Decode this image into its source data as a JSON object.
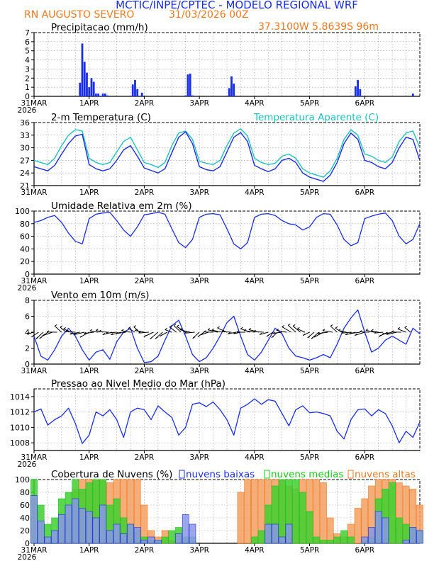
{
  "header": {
    "title": "MCTIC/INPE/CPTEC - MODELO REGIONAL WRF",
    "location": "RN AUGUSTO SEVERO",
    "run": "31/03/2026 00Z",
    "coords": "37.3100W 5.8639S 96m"
  },
  "colors": {
    "blue": "#1a2ee6",
    "cyan": "#20c0c0",
    "orange": "#f07820",
    "green": "#18c818",
    "orange_fill": "#f5a060",
    "green_fill": "#40d030",
    "blue_fill": "#8a96e8",
    "title_blue": "#1a2ee6",
    "black": "#000000"
  },
  "x_ticks": [
    "31MAR",
    "1APR",
    "2APR",
    "3APR",
    "4APR",
    "5APR",
    "6APR"
  ],
  "x_year": "2026",
  "chart_data": [
    {
      "id": "precip",
      "type": "bar",
      "title": "Precipitacao (mm/h)",
      "ylim": [
        0,
        7
      ],
      "yticks": [
        "0",
        "1",
        "2",
        "3",
        "4",
        "5",
        "6",
        "7"
      ],
      "hours_from_start": [
        20,
        21,
        22,
        23,
        24,
        25,
        26,
        27,
        28,
        30,
        31,
        32,
        43,
        44,
        45,
        47,
        66,
        67,
        68,
        69,
        85,
        86,
        87,
        140,
        141,
        142,
        165
      ],
      "values": [
        1.5,
        5.8,
        3.8,
        2.6,
        1.0,
        2.0,
        1.6,
        0.3,
        0.3,
        0.3,
        0.3,
        0.1,
        1.3,
        1.8,
        0.8,
        0.4,
        0.1,
        2.4,
        2.5,
        0.1,
        0.9,
        2.2,
        1.4,
        1.1,
        1.8,
        0.8,
        0.3
      ]
    },
    {
      "id": "temp",
      "type": "line",
      "title": "2-m Temperatura (C)",
      "title2": "Temperatura Aparente (C)",
      "ylim": [
        21,
        36
      ],
      "yticks": [
        "21",
        "24",
        "27",
        "30",
        "33",
        "36"
      ],
      "series": [
        {
          "name": "2-m Temperatura (C)",
          "hours": [
            0,
            3,
            6,
            9,
            12,
            15,
            18,
            21,
            24,
            27,
            30,
            33,
            36,
            39,
            42,
            45,
            48,
            51,
            54,
            57,
            60,
            63,
            66,
            69,
            72,
            75,
            78,
            81,
            84,
            87,
            90,
            93,
            96,
            99,
            102,
            105,
            108,
            111,
            114,
            117,
            120,
            123,
            126,
            129,
            132,
            135,
            138,
            141,
            144,
            147,
            150,
            153,
            156,
            159,
            162,
            165,
            168
          ],
          "values": [
            25.5,
            25.0,
            24.5,
            25.8,
            28.5,
            31.0,
            32.8,
            33.2,
            26.0,
            25.0,
            24.5,
            25.0,
            27.0,
            29.5,
            30.5,
            28.0,
            25.2,
            24.6,
            24.0,
            25.0,
            28.8,
            32.5,
            33.8,
            31.0,
            25.5,
            24.8,
            24.5,
            25.5,
            29.0,
            32.5,
            33.6,
            31.5,
            25.8,
            25.0,
            24.3,
            25.0,
            27.0,
            27.5,
            26.5,
            24.0,
            23.0,
            22.5,
            22.0,
            23.5,
            26.5,
            31.0,
            33.5,
            32.0,
            27.0,
            26.5,
            25.5,
            25.0,
            26.5,
            30.0,
            32.5,
            32.0,
            27.0
          ]
        },
        {
          "name": "Temperatura Aparente (C)",
          "hours": [
            0,
            3,
            6,
            9,
            12,
            15,
            18,
            21,
            24,
            27,
            30,
            33,
            36,
            39,
            42,
            45,
            48,
            51,
            54,
            57,
            60,
            63,
            66,
            69,
            72,
            75,
            78,
            81,
            84,
            87,
            90,
            93,
            96,
            99,
            102,
            105,
            108,
            111,
            114,
            117,
            120,
            123,
            126,
            129,
            132,
            135,
            138,
            141,
            144,
            147,
            150,
            153,
            156,
            159,
            162,
            165,
            168
          ],
          "values": [
            27.0,
            26.5,
            26.0,
            27.5,
            30.5,
            33.0,
            34.3,
            34.0,
            27.5,
            26.5,
            26.0,
            26.5,
            29.0,
            31.5,
            32.5,
            29.5,
            26.5,
            26.0,
            25.3,
            26.5,
            30.5,
            33.5,
            34.0,
            32.0,
            26.8,
            26.3,
            26.0,
            27.0,
            30.5,
            33.5,
            34.5,
            32.8,
            27.5,
            26.5,
            26.0,
            26.3,
            28.0,
            28.5,
            27.5,
            25.0,
            24.0,
            23.5,
            23.0,
            24.5,
            27.5,
            32.0,
            34.3,
            33.0,
            28.5,
            28.0,
            27.0,
            26.5,
            27.8,
            31.5,
            33.5,
            34.0,
            30.0
          ]
        }
      ]
    },
    {
      "id": "rh",
      "type": "line",
      "title": "Umidade Relativa em 2m (%)",
      "ylim": [
        0,
        100
      ],
      "yticks": [
        "0",
        "20",
        "40",
        "60",
        "80",
        "100"
      ],
      "series": [
        {
          "name": "Umidade Relativa em 2m (%)",
          "hours": [
            0,
            3,
            6,
            9,
            12,
            15,
            18,
            21,
            24,
            27,
            30,
            33,
            36,
            39,
            42,
            45,
            48,
            51,
            54,
            57,
            60,
            63,
            66,
            69,
            72,
            75,
            78,
            81,
            84,
            87,
            90,
            93,
            96,
            99,
            102,
            105,
            108,
            111,
            114,
            117,
            120,
            123,
            126,
            129,
            132,
            135,
            138,
            141,
            144,
            147,
            150,
            153,
            156,
            159,
            162,
            165,
            168
          ],
          "values": [
            82,
            85,
            90,
            93,
            82,
            65,
            52,
            48,
            88,
            95,
            97,
            98,
            85,
            70,
            60,
            75,
            94,
            96,
            98,
            95,
            72,
            50,
            42,
            55,
            90,
            95,
            96,
            94,
            72,
            48,
            40,
            50,
            90,
            95,
            96,
            93,
            85,
            80,
            78,
            70,
            75,
            90,
            96,
            95,
            78,
            55,
            45,
            50,
            88,
            92,
            95,
            97,
            85,
            60,
            48,
            55,
            80
          ]
        }
      ]
    },
    {
      "id": "wind",
      "type": "line",
      "title": "Vento em 10m (m/s)",
      "ylim": [
        0,
        8
      ],
      "yticks": [
        "0",
        "2",
        "4",
        "6",
        "8"
      ],
      "barbs": "wind direction arrows along 4 m/s line",
      "series": [
        {
          "name": "Vento em 10m (m/s)",
          "hours": [
            0,
            3,
            6,
            9,
            12,
            15,
            18,
            21,
            24,
            27,
            30,
            33,
            36,
            39,
            42,
            45,
            48,
            51,
            54,
            57,
            60,
            63,
            66,
            69,
            72,
            75,
            78,
            81,
            84,
            87,
            90,
            93,
            96,
            99,
            102,
            105,
            108,
            111,
            114,
            117,
            120,
            123,
            126,
            129,
            132,
            135,
            138,
            141,
            144,
            147,
            150,
            153,
            156,
            159,
            162,
            165,
            168
          ],
          "values": [
            3.5,
            1.0,
            0.5,
            1.8,
            3.5,
            4.5,
            3.5,
            1.8,
            0.5,
            1.5,
            1.8,
            0.6,
            2.8,
            4.0,
            4.5,
            2.0,
            0.2,
            0.3,
            1.0,
            3.0,
            4.8,
            5.5,
            3.5,
            1.2,
            0.3,
            0.8,
            2.0,
            3.5,
            5.2,
            6.0,
            3.5,
            1.2,
            0.5,
            1.5,
            3.0,
            4.5,
            3.8,
            2.0,
            1.0,
            0.8,
            0.5,
            0.8,
            1.2,
            0.8,
            2.5,
            4.5,
            5.8,
            6.8,
            4.0,
            1.5,
            2.0,
            3.0,
            3.5,
            3.0,
            2.5,
            4.5,
            3.8
          ]
        }
      ]
    },
    {
      "id": "pressure",
      "type": "line",
      "title": "Pressao ao Nivel Medio do Mar (hPa)",
      "ylim": [
        1007,
        1015
      ],
      "yticks": [
        "1008",
        "1010",
        "1012",
        "1014"
      ],
      "series": [
        {
          "name": "Pressao ao Nivel Medio do Mar (hPa)",
          "hours": [
            0,
            3,
            6,
            9,
            12,
            15,
            18,
            21,
            24,
            27,
            30,
            33,
            36,
            39,
            42,
            45,
            48,
            51,
            54,
            57,
            60,
            63,
            66,
            69,
            72,
            75,
            78,
            81,
            84,
            87,
            90,
            93,
            96,
            99,
            102,
            105,
            108,
            111,
            114,
            117,
            120,
            123,
            126,
            129,
            132,
            135,
            138,
            141,
            144,
            147,
            150,
            153,
            156,
            159,
            162,
            165,
            168
          ],
          "values": [
            1012.0,
            1012.4,
            1010.3,
            1011.0,
            1011.5,
            1012.5,
            1010.5,
            1007.9,
            1009.0,
            1012.0,
            1011.5,
            1012.3,
            1011.0,
            1008.7,
            1012.0,
            1012.5,
            1012.3,
            1011.0,
            1012.8,
            1012.0,
            1011.3,
            1009.0,
            1010.0,
            1013.0,
            1013.2,
            1012.7,
            1013.3,
            1012.3,
            1011.0,
            1009.0,
            1012.5,
            1013.0,
            1013.7,
            1013.0,
            1013.6,
            1013.4,
            1011.8,
            1010.2,
            1012.3,
            1012.8,
            1011.9,
            1012.0,
            1011.8,
            1011.5,
            1009.5,
            1008.5,
            1011.0,
            1012.3,
            1012.4,
            1011.5,
            1012.3,
            1011.8,
            1010.2,
            1008.0,
            1009.5,
            1008.7,
            1010.7
          ]
        }
      ]
    },
    {
      "id": "clouds",
      "type": "bar",
      "title": "Cobertura de Nuvens (%)",
      "legend": [
        "nuvens baixas",
        "nuvens medias",
        "nuvens altas"
      ],
      "ylim": [
        0,
        100
      ],
      "yticks": [
        "0",
        "20",
        "40",
        "60",
        "80",
        "100"
      ],
      "series": [
        {
          "name": "nuvens altas",
          "hours": [
            0,
            3,
            6,
            9,
            12,
            15,
            18,
            21,
            24,
            27,
            30,
            33,
            36,
            39,
            42,
            45,
            48,
            51,
            54,
            57,
            60,
            63,
            66,
            69,
            72,
            75,
            78,
            81,
            84,
            87,
            90,
            93,
            96,
            99,
            102,
            105,
            108,
            111,
            114,
            117,
            120,
            123,
            126,
            129,
            132,
            135,
            138,
            141,
            144,
            147,
            150,
            153,
            156,
            159,
            162,
            165,
            168
          ],
          "values": [
            0,
            0,
            0,
            0,
            10,
            40,
            85,
            100,
            100,
            100,
            100,
            95,
            100,
            100,
            100,
            100,
            60,
            20,
            10,
            20,
            5,
            5,
            0,
            0,
            0,
            0,
            0,
            0,
            0,
            0,
            80,
            100,
            100,
            100,
            100,
            100,
            100,
            90,
            85,
            100,
            100,
            100,
            95,
            40,
            15,
            10,
            30,
            55,
            70,
            90,
            100,
            100,
            100,
            95,
            90,
            85,
            60
          ]
        },
        {
          "name": "nuvens medias",
          "hours": [
            0,
            3,
            6,
            9,
            12,
            15,
            18,
            21,
            24,
            27,
            30,
            33,
            36,
            39,
            42,
            45,
            48,
            51,
            54,
            57,
            60,
            63,
            66,
            69,
            72,
            75,
            78,
            81,
            84,
            87,
            90,
            93,
            96,
            99,
            102,
            105,
            108,
            111,
            114,
            117,
            120,
            123,
            126,
            129,
            132,
            135,
            138,
            141,
            144,
            147,
            150,
            153,
            156,
            159,
            162,
            165,
            168
          ],
          "values": [
            100,
            60,
            30,
            40,
            70,
            80,
            100,
            85,
            95,
            100,
            100,
            60,
            70,
            40,
            30,
            20,
            10,
            5,
            5,
            10,
            20,
            25,
            10,
            10,
            0,
            0,
            0,
            0,
            0,
            0,
            0,
            0,
            10,
            20,
            60,
            90,
            100,
            100,
            100,
            80,
            50,
            10,
            5,
            5,
            10,
            20,
            10,
            0,
            5,
            10,
            70,
            85,
            95,
            40,
            30,
            25,
            20
          ]
        },
        {
          "name": "nuvens baixas",
          "hours": [
            0,
            3,
            6,
            9,
            12,
            15,
            18,
            21,
            24,
            27,
            30,
            33,
            36,
            39,
            42,
            45,
            48,
            51,
            54,
            57,
            60,
            63,
            66,
            69,
            72,
            75,
            78,
            81,
            84,
            87,
            90,
            93,
            96,
            99,
            102,
            105,
            108,
            111,
            114,
            117,
            120,
            123,
            126,
            129,
            132,
            135,
            138,
            141,
            144,
            147,
            150,
            153,
            156,
            159,
            162,
            165,
            168
          ],
          "values": [
            75,
            35,
            10,
            20,
            45,
            60,
            70,
            55,
            50,
            40,
            60,
            20,
            30,
            15,
            30,
            25,
            5,
            10,
            5,
            0,
            0,
            15,
            45,
            30,
            0,
            0,
            0,
            0,
            0,
            0,
            0,
            0,
            0,
            0,
            30,
            30,
            10,
            30,
            0,
            0,
            0,
            0,
            0,
            0,
            0,
            0,
            0,
            0,
            10,
            25,
            50,
            40,
            0,
            0,
            5,
            25,
            20
          ]
        }
      ]
    }
  ]
}
